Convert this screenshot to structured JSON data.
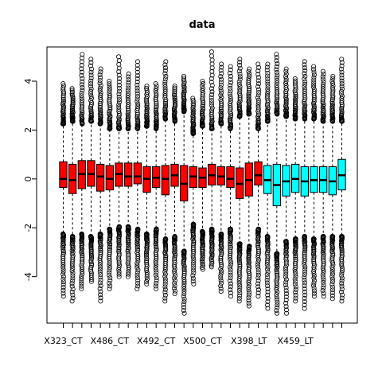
{
  "chart_data": {
    "type": "boxplot",
    "title": "data",
    "xlabel": "",
    "ylabel": "",
    "ylim": [
      -5.9,
      5.4
    ],
    "yticks": [
      -4,
      -2,
      0,
      2,
      4
    ],
    "ytick_labels": [
      "-4",
      "-2",
      "0",
      "2",
      "4"
    ],
    "colors": {
      "CT": "#ff0000",
      "LT": "#00ffff",
      "outline": "#000000"
    },
    "x_tick_labels_shown": [
      {
        "index": 0,
        "label": "X323_CT"
      },
      {
        "index": 5,
        "label": "X486_CT"
      },
      {
        "index": 10,
        "label": "X492_CT"
      },
      {
        "index": 15,
        "label": "X500_CT"
      },
      {
        "index": 20,
        "label": "X398_LT"
      },
      {
        "index": 25,
        "label": "X459_LT"
      }
    ],
    "boxes": [
      {
        "group": "CT",
        "q1": -0.35,
        "median": 0.0,
        "q3": 0.7,
        "wl": -2.2,
        "wu": 2.2,
        "omin": -4.8,
        "omax": 3.9
      },
      {
        "group": "CT",
        "q1": -0.6,
        "median": -0.05,
        "q3": 0.6,
        "wl": -2.3,
        "wu": 2.3,
        "omin": -5.0,
        "omax": 3.7
      },
      {
        "group": "CT",
        "q1": -0.4,
        "median": 0.2,
        "q3": 0.75,
        "wl": -2.2,
        "wu": 2.2,
        "omin": -4.5,
        "omax": 5.1
      },
      {
        "group": "CT",
        "q1": -0.3,
        "median": 0.2,
        "q3": 0.75,
        "wl": -2.3,
        "wu": 2.3,
        "omin": -4.2,
        "omax": 4.9
      },
      {
        "group": "CT",
        "q1": -0.5,
        "median": 0.1,
        "q3": 0.6,
        "wl": -2.2,
        "wu": 2.2,
        "omin": -5.0,
        "omax": 4.5
      },
      {
        "group": "CT",
        "q1": -0.45,
        "median": 0.0,
        "q3": 0.55,
        "wl": -2.0,
        "wu": 2.0,
        "omin": -4.5,
        "omax": 4.0
      },
      {
        "group": "CT",
        "q1": -0.3,
        "median": 0.2,
        "q3": 0.65,
        "wl": -1.9,
        "wu": 2.0,
        "omin": -4.0,
        "omax": 5.0
      },
      {
        "group": "CT",
        "q1": -0.3,
        "median": 0.1,
        "q3": 0.65,
        "wl": -1.9,
        "wu": 2.0,
        "omin": -4.0,
        "omax": 4.3
      },
      {
        "group": "CT",
        "q1": -0.2,
        "median": 0.1,
        "q3": 0.65,
        "wl": -2.0,
        "wu": 2.0,
        "omin": -4.5,
        "omax": 4.8
      },
      {
        "group": "CT",
        "q1": -0.55,
        "median": 0.0,
        "q3": 0.5,
        "wl": -2.2,
        "wu": 2.1,
        "omin": -4.3,
        "omax": 3.8
      },
      {
        "group": "CT",
        "q1": -0.35,
        "median": 0.05,
        "q3": 0.5,
        "wl": -2.0,
        "wu": 2.0,
        "omin": -4.5,
        "omax": 3.9
      },
      {
        "group": "CT",
        "q1": -0.65,
        "median": 0.0,
        "q3": 0.55,
        "wl": -2.4,
        "wu": 2.4,
        "omin": -5.0,
        "omax": 4.8
      },
      {
        "group": "CT",
        "q1": -0.3,
        "median": 0.15,
        "q3": 0.6,
        "wl": -2.3,
        "wu": 2.3,
        "omin": -4.7,
        "omax": 3.8
      },
      {
        "group": "CT",
        "q1": -0.9,
        "median": -0.2,
        "q3": 0.55,
        "wl": -2.9,
        "wu": 2.7,
        "omin": -5.5,
        "omax": 4.2
      },
      {
        "group": "CT",
        "q1": -0.35,
        "median": 0.1,
        "q3": 0.5,
        "wl": -1.8,
        "wu": 1.8,
        "omin": -4.3,
        "omax": 3.3
      },
      {
        "group": "CT",
        "q1": -0.35,
        "median": 0.05,
        "q3": 0.45,
        "wl": -2.1,
        "wu": 2.1,
        "omin": -3.7,
        "omax": 4.0
      },
      {
        "group": "CT",
        "q1": -0.25,
        "median": 0.15,
        "q3": 0.6,
        "wl": -2.0,
        "wu": 2.0,
        "omin": -3.6,
        "omax": 5.2
      },
      {
        "group": "CT",
        "q1": -0.25,
        "median": 0.1,
        "q3": 0.5,
        "wl": -2.2,
        "wu": 2.2,
        "omin": -4.6,
        "omax": 4.7
      },
      {
        "group": "CT",
        "q1": -0.35,
        "median": 0.0,
        "q3": 0.5,
        "wl": -2.0,
        "wu": 2.0,
        "omin": -4.8,
        "omax": 4.6
      },
      {
        "group": "CT",
        "q1": -0.8,
        "median": -0.2,
        "q3": 0.45,
        "wl": -2.6,
        "wu": 2.5,
        "omin": -5.0,
        "omax": 4.9
      },
      {
        "group": "CT",
        "q1": -0.7,
        "median": -0.05,
        "q3": 0.65,
        "wl": -2.7,
        "wu": 2.6,
        "omin": -5.2,
        "omax": 4.5
      },
      {
        "group": "CT",
        "q1": -0.25,
        "median": 0.15,
        "q3": 0.7,
        "wl": -2.0,
        "wu": 2.0,
        "omin": -4.8,
        "omax": 4.7
      },
      {
        "group": "LT",
        "q1": -0.6,
        "median": -0.05,
        "q3": 0.55,
        "wl": -2.3,
        "wu": 2.3,
        "omin": -5.3,
        "omax": 4.7
      },
      {
        "group": "LT",
        "q1": -1.1,
        "median": -0.25,
        "q3": 0.6,
        "wl": -3.0,
        "wu": 2.6,
        "omin": -5.5,
        "omax": 5.1
      },
      {
        "group": "LT",
        "q1": -0.7,
        "median": -0.1,
        "q3": 0.55,
        "wl": -2.5,
        "wu": 2.5,
        "omin": -5.5,
        "omax": 4.5
      },
      {
        "group": "LT",
        "q1": -0.55,
        "median": 0.0,
        "q3": 0.6,
        "wl": -2.4,
        "wu": 2.4,
        "omin": -5.0,
        "omax": 4.1
      },
      {
        "group": "LT",
        "q1": -0.7,
        "median": -0.1,
        "q3": 0.5,
        "wl": -2.3,
        "wu": 2.4,
        "omin": -5.3,
        "omax": 4.8
      },
      {
        "group": "LT",
        "q1": -0.55,
        "median": -0.05,
        "q3": 0.5,
        "wl": -2.4,
        "wu": 2.4,
        "omin": -4.8,
        "omax": 4.6
      },
      {
        "group": "LT",
        "q1": -0.55,
        "median": -0.05,
        "q3": 0.5,
        "wl": -2.3,
        "wu": 2.3,
        "omin": -4.8,
        "omax": 4.4
      },
      {
        "group": "LT",
        "q1": -0.65,
        "median": -0.1,
        "q3": 0.5,
        "wl": -2.3,
        "wu": 2.3,
        "omin": -4.9,
        "omax": 4.2
      },
      {
        "group": "LT",
        "q1": -0.45,
        "median": 0.15,
        "q3": 0.8,
        "wl": -2.3,
        "wu": 2.3,
        "omin": -5.0,
        "omax": 4.9
      }
    ]
  }
}
